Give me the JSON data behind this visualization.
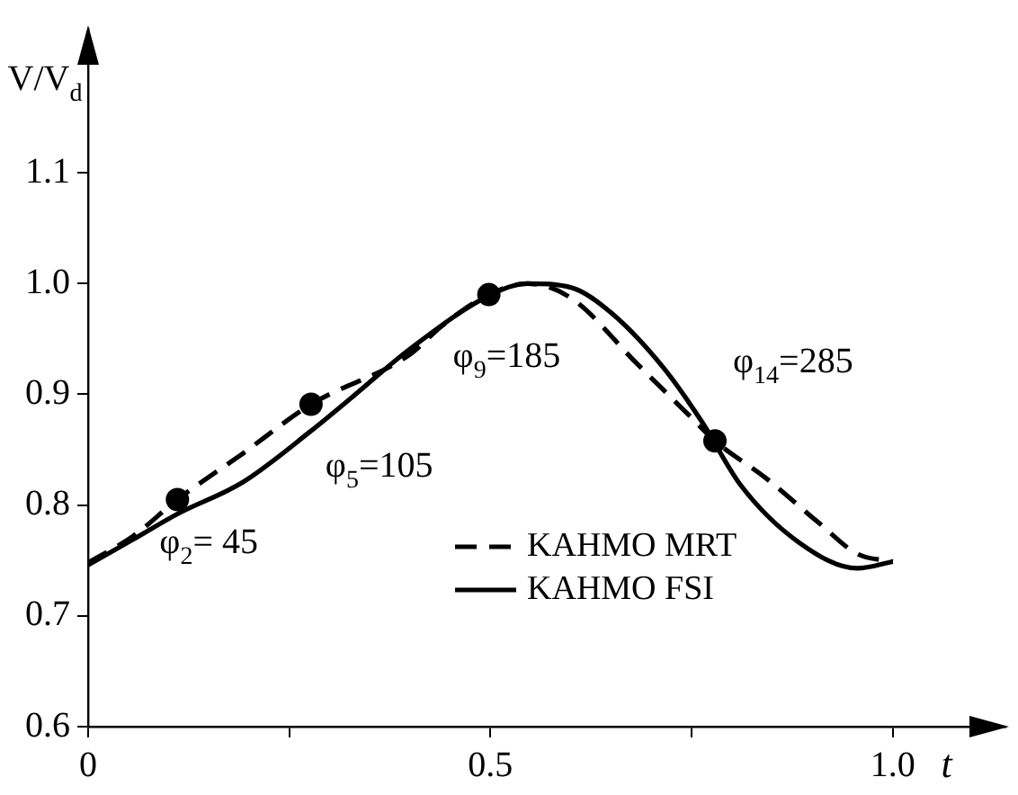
{
  "chart_data": {
    "type": "line",
    "xlabel": "t",
    "ylabel": "V/V$_{d}$",
    "xlim": [
      0,
      1.14
    ],
    "ylim": [
      0.6,
      1.23
    ],
    "xticks": [
      0,
      {
        "value": 0.25,
        "label": null
      },
      0.5,
      {
        "value": 0.75,
        "label": null
      },
      {
        "value": 1,
        "label": "1.0"
      }
    ],
    "yticks": [
      0.6,
      0.7,
      0.8,
      0.9,
      {
        "value": 1,
        "label": "1.0"
      },
      1.1
    ],
    "grid": false,
    "legend": "bottom",
    "series": [
      {
        "name": "KAHMO MRT",
        "color": "#000000",
        "line_style": "dashed",
        "x": [
          0,
          0.056,
          0.111,
          0.193,
          0.277,
          0.4,
          0.44,
          0.498,
          0.546,
          0.6,
          0.683,
          0.747,
          0.779,
          0.843,
          0.908,
          0.956,
          1.0
        ],
        "values": [
          0.748,
          0.772,
          0.805,
          0.847,
          0.891,
          0.936,
          0.962,
          0.99,
          1.0,
          0.987,
          0.927,
          0.881,
          0.858,
          0.824,
          0.784,
          0.756,
          0.749
        ]
      },
      {
        "name": "KAHMO FSI",
        "color": "#000000",
        "line_style": "solid",
        "x": [
          0,
          0.056,
          0.111,
          0.193,
          0.277,
          0.329,
          0.4,
          0.498,
          0.546,
          0.602,
          0.651,
          0.715,
          0.763,
          0.811,
          0.884,
          0.956,
          1.0
        ],
        "values": [
          0.746,
          0.769,
          0.792,
          0.821,
          0.867,
          0.898,
          0.941,
          0.989,
          1.0,
          0.996,
          0.973,
          0.924,
          0.875,
          0.818,
          0.766,
          0.743,
          0.749
        ]
      },
      {
        "type": "scatter",
        "color": "#000000",
        "marker": "circle",
        "x": [
          0.111,
          0.277,
          0.498,
          0.779
        ],
        "values": [
          0.805,
          0.891,
          0.99,
          0.858
        ]
      }
    ],
    "annotations": [
      {
        "text": "φ$_{2}$= 45",
        "x": 0.111,
        "y": 0.805
      },
      {
        "text": "φ$_{5}$=105",
        "x": 0.277,
        "y": 0.891
      },
      {
        "text": "φ$_{9}$=185",
        "x": 0.498,
        "y": 0.99
      },
      {
        "text": "φ$_{14}$=285",
        "x": 0.779,
        "y": 0.858
      }
    ]
  }
}
